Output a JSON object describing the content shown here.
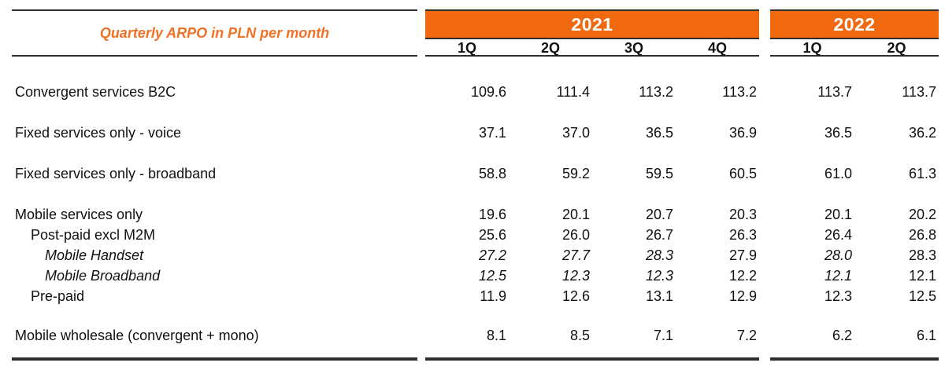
{
  "colors": {
    "accent": "#F0690E",
    "banner_text": "#FFFFFF",
    "title_color": "#EE7125",
    "rule": "#2E2E2E"
  },
  "chart_data": {
    "type": "table",
    "title": "Quarterly ARPO in PLN per month",
    "unit": "PLN per month",
    "year_groups": [
      {
        "label": "2021",
        "quarters": [
          "1Q",
          "2Q",
          "3Q",
          "4Q"
        ]
      },
      {
        "label": "2022",
        "quarters": [
          "1Q",
          "2Q"
        ]
      }
    ],
    "columns": [
      "1Q 2021",
      "2Q 2021",
      "3Q 2021",
      "4Q 2021",
      "1Q 2022",
      "2Q 2022"
    ],
    "rows": [
      {
        "label": "Convergent services B2C",
        "indent": 0,
        "values": [
          "109.6",
          "111.4",
          "113.2",
          "113.2",
          "113.7",
          "113.7"
        ]
      },
      {
        "label": "Fixed services only - voice",
        "indent": 0,
        "values": [
          "37.1",
          "37.0",
          "36.5",
          "36.9",
          "36.5",
          "36.2"
        ]
      },
      {
        "label": "Fixed services only - broadband",
        "indent": 0,
        "values": [
          "58.8",
          "59.2",
          "59.5",
          "60.5",
          "61.0",
          "61.3"
        ]
      },
      {
        "label": "Mobile services only",
        "indent": 0,
        "values": [
          "19.6",
          "20.1",
          "20.7",
          "20.3",
          "20.1",
          "20.2"
        ]
      },
      {
        "label": "Post-paid excl M2M",
        "indent": 1,
        "values": [
          "25.6",
          "26.0",
          "26.7",
          "26.3",
          "26.4",
          "26.8"
        ]
      },
      {
        "label": "Mobile Handset",
        "indent": 2,
        "label_italic": true,
        "values": [
          "27.2",
          "27.7",
          "28.3",
          "27.9",
          "28.0",
          "28.3"
        ],
        "italic_value_columns": [
          0,
          1,
          2,
          4
        ]
      },
      {
        "label": "Mobile Broadband",
        "indent": 2,
        "label_italic": true,
        "values": [
          "12.5",
          "12.3",
          "12.3",
          "12.2",
          "12.1",
          "12.1"
        ],
        "italic_value_columns": [
          0,
          1,
          2,
          4
        ]
      },
      {
        "label": "Pre-paid",
        "indent": 1,
        "values": [
          "11.9",
          "12.6",
          "13.1",
          "12.9",
          "12.3",
          "12.5"
        ]
      },
      {
        "label": "Mobile wholesale (convergent + mono)",
        "indent": 0,
        "values": [
          "8.1",
          "8.5",
          "7.1",
          "7.2",
          "6.2",
          "6.1"
        ]
      }
    ]
  }
}
